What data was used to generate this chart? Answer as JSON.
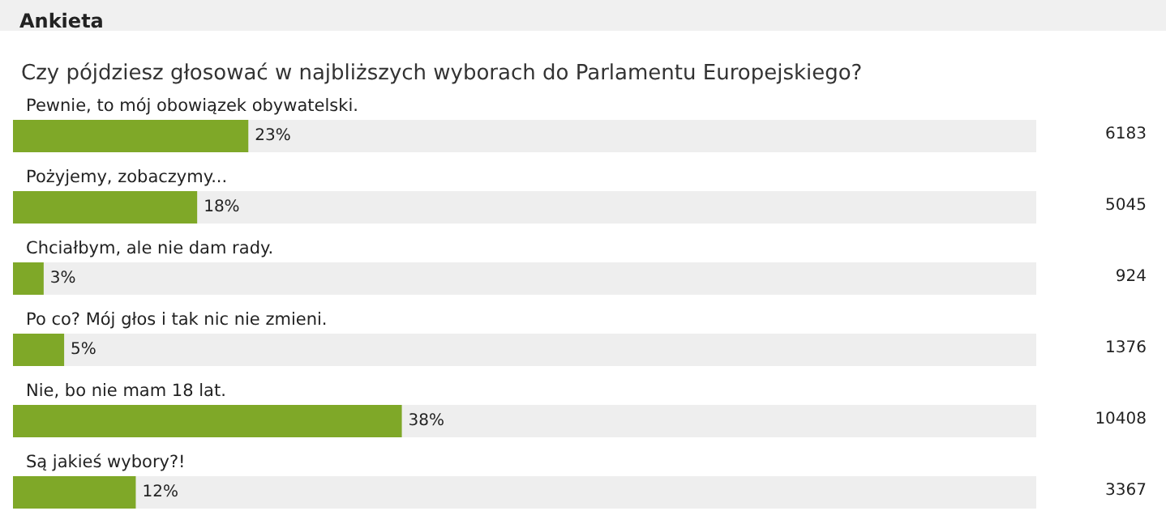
{
  "chart_data": {
    "type": "bar",
    "orientation": "horizontal",
    "title": "Ankieta",
    "subtitle": "Czy pójdziesz głosować w najbliższych wyborach do Parlamentu Europejskiego?",
    "categories": [
      "Pewnie, to mój obowiązek obywatelski.",
      "Pożyjemy, zobaczymy...",
      "Chciałbym, ale nie dam rady.",
      "Po co? Mój głos i tak nic nie zmieni.",
      "Nie, bo nie mam 18 lat.",
      "Są jakieś wybory?!"
    ],
    "values": [
      23,
      18,
      3,
      5,
      38,
      12
    ],
    "value_labels": [
      "23%",
      "18%",
      "3%",
      "5%",
      "38%",
      "12%"
    ],
    "color": "#7fa828",
    "xlim": [
      0,
      100
    ],
    "tick_labels": "y",
    "grid": false,
    "annotations": [
      "6183",
      "5045",
      "924",
      "1376",
      "10408",
      "3367"
    ]
  }
}
